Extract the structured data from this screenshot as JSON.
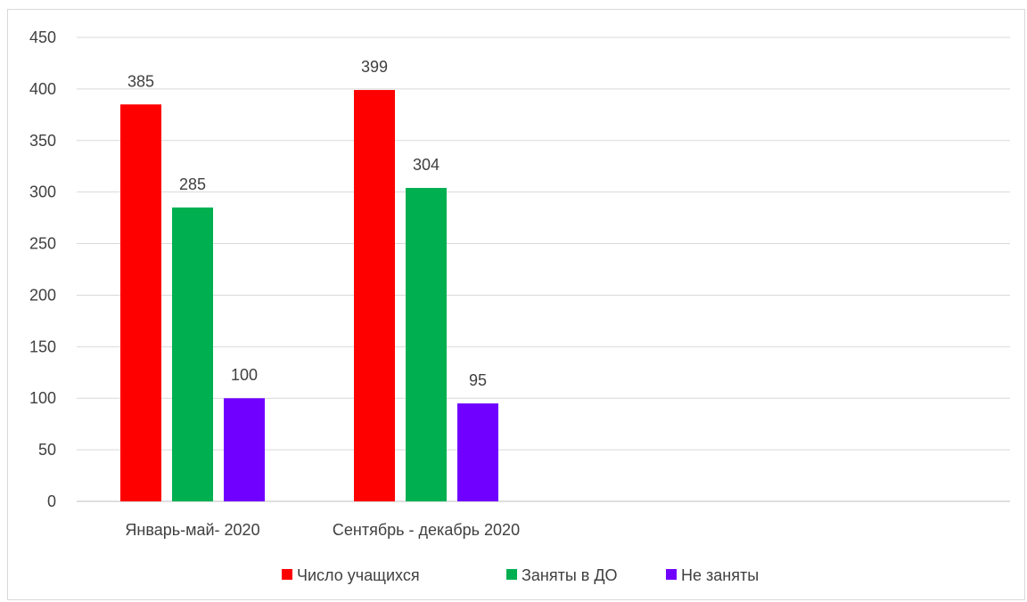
{
  "chart_data": {
    "type": "bar",
    "categories": [
      "Январь-май- 2020",
      "Сентябрь - декабрь 2020"
    ],
    "series": [
      {
        "name": "Число учащихся",
        "color": "#ff0000",
        "values": [
          385,
          399
        ]
      },
      {
        "name": "Заняты в ДО",
        "color": "#00b050",
        "values": [
          285,
          304
        ]
      },
      {
        "name": "Не заняты",
        "color": "#7000ff",
        "values": [
          100,
          95
        ]
      }
    ],
    "ylim": [
      0,
      450
    ],
    "yticks": [
      0,
      50,
      100,
      150,
      200,
      250,
      300,
      350,
      400,
      450
    ],
    "grid": true,
    "legend_position": "bottom",
    "title": "",
    "xlabel": "",
    "ylabel": ""
  }
}
